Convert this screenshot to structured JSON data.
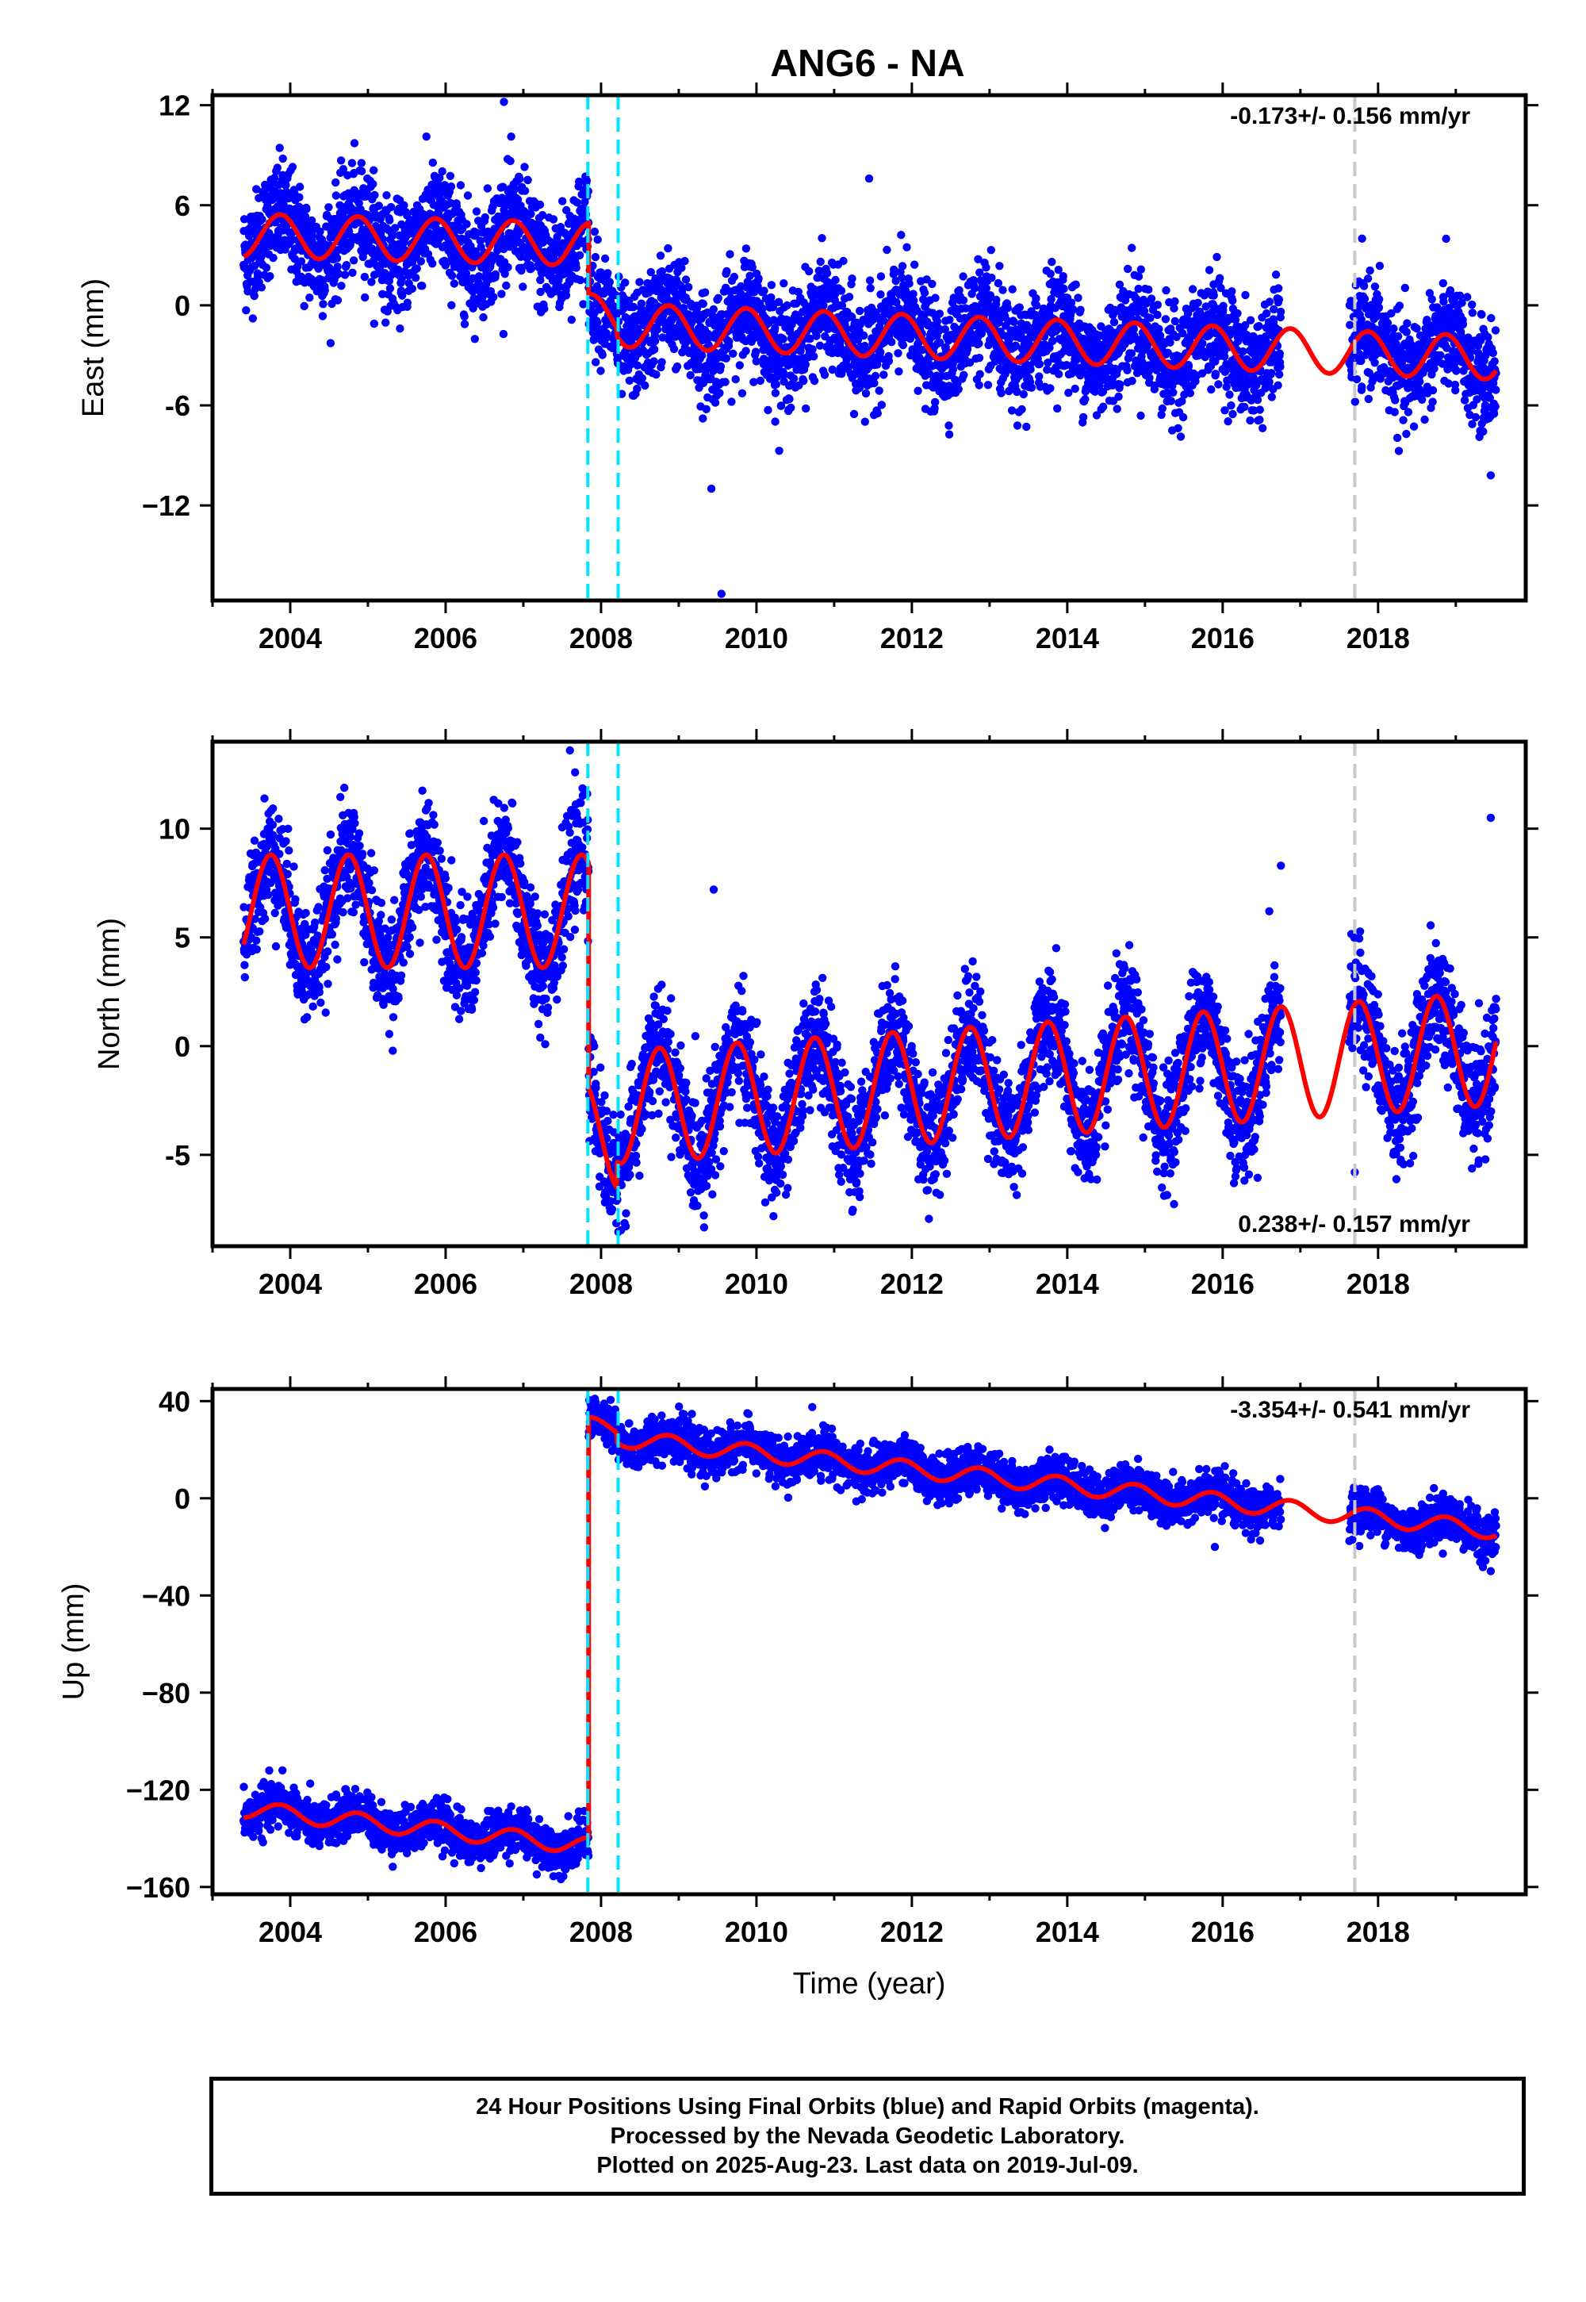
{
  "title": "ANG6 - NA",
  "footer": {
    "line1": "24 Hour Positions Using Final Orbits (blue) and Rapid Orbits (magenta).",
    "line2": "Processed by the Nevada Geodetic Laboratory.",
    "line3": "Plotted on 2025-Aug-23. Last data on 2019-Jul-09."
  },
  "colors": {
    "data_points": "#0000ff",
    "model_fit": "#ff0000",
    "equipment_change": "#00e5ff",
    "offset_marker": "#c8c8c8",
    "frame": "#000000"
  },
  "chart_data": [
    {
      "type": "scatter",
      "ylabel": "East (mm)",
      "xlabel": "",
      "xlim": [
        2003.0,
        2019.9
      ],
      "ylim": [
        -17.7,
        12.6
      ],
      "xticks": [
        2004,
        2006,
        2008,
        2010,
        2012,
        2014,
        2016,
        2018
      ],
      "yticks": [
        -12,
        -6,
        0,
        6,
        12
      ],
      "ytick_labels": [
        "−12",
        "-6",
        "0",
        "6",
        "12"
      ],
      "rate_label": "-0.173+/- 0.156 mm/yr",
      "rate_position": "top-right",
      "data_start": 2003.4,
      "data_end": 2019.52,
      "data_gap": [
        2016.75,
        2017.63
      ],
      "fit": {
        "offset": 0.0,
        "trend": -0.173,
        "amp": 1.3,
        "phase": 0.62,
        "scatter": 1.6,
        "steps": [
          {
            "t": 2007.84,
            "delta": -4.3
          },
          {
            "t": 2008.2,
            "delta": -0.5
          }
        ],
        "pre_offset_trend": -0.12,
        "level_at_start": 4.2
      },
      "vlines": [
        {
          "x": 2007.83,
          "kind": "equipment_change"
        },
        {
          "x": 2008.22,
          "kind": "equipment_change"
        },
        {
          "x": 2017.7,
          "kind": "offset_marker"
        }
      ],
      "outliers": [
        [
          2006.75,
          12.2
        ],
        [
          2009.42,
          -11.0
        ],
        [
          2009.55,
          -17.3
        ],
        [
          2019.45,
          -10.2
        ],
        [
          2015.35,
          -7.5
        ],
        [
          2011.45,
          7.6
        ]
      ]
    },
    {
      "type": "scatter",
      "ylabel": "North (mm)",
      "xlabel": "",
      "xlim": [
        2003.0,
        2019.9
      ],
      "ylim": [
        -9.2,
        14.0
      ],
      "xticks": [
        2004,
        2006,
        2008,
        2010,
        2012,
        2014,
        2016,
        2018
      ],
      "yticks": [
        -5,
        0,
        5,
        10
      ],
      "ytick_labels": [
        "-5",
        "0",
        "5",
        "10"
      ],
      "rate_label": "0.238+/- 0.157 mm/yr",
      "rate_position": "bottom-right",
      "data_start": 2003.4,
      "data_end": 2019.52,
      "data_gap": [
        2016.75,
        2017.63
      ],
      "fit": {
        "offset": 0.0,
        "trend": 0.238,
        "amp": 2.6,
        "phase": 0.5,
        "scatter": 1.3,
        "steps": [
          {
            "t": 2007.84,
            "delta": -10.3
          },
          {
            "t": 2008.2,
            "delta": 1.2
          }
        ],
        "pre_offset_trend": 0.0,
        "level_at_start": 6.2
      },
      "vlines": [
        {
          "x": 2007.83,
          "kind": "equipment_change"
        },
        {
          "x": 2008.22,
          "kind": "equipment_change"
        },
        {
          "x": 2017.7,
          "kind": "offset_marker"
        }
      ],
      "outliers": [
        [
          2007.6,
          13.6
        ],
        [
          2009.45,
          7.2
        ],
        [
          2016.75,
          8.3
        ],
        [
          2019.45,
          10.5
        ],
        [
          2017.7,
          -5.8
        ],
        [
          2016.6,
          6.2
        ]
      ]
    },
    {
      "type": "scatter",
      "ylabel": "Up (mm)",
      "xlabel": "Time (year)",
      "xlim": [
        2003.0,
        2019.9
      ],
      "ylim": [
        -163,
        45
      ],
      "xticks": [
        2004,
        2006,
        2008,
        2010,
        2012,
        2014,
        2016,
        2018
      ],
      "yticks": [
        -160,
        -120,
        -80,
        -40,
        0,
        40
      ],
      "ytick_labels": [
        "−160",
        "−120",
        "−80",
        "−40",
        "0",
        "40"
      ],
      "rate_label": "-3.354+/- 0.541 mm/yr",
      "rate_position": "top-right",
      "data_start": 2003.4,
      "data_end": 2019.52,
      "data_gap": [
        2016.75,
        2017.63
      ],
      "fit": {
        "offset": 0.0,
        "trend": -3.354,
        "amp": 3.5,
        "phase": 0.62,
        "scatter": 4.5,
        "steps": [
          {
            "t": 2007.84,
            "delta": 173.0
          },
          {
            "t": 2008.2,
            "delta": -4.0
          }
        ],
        "pre_offset_trend": -3.4,
        "level_at_start": -128.0
      },
      "vlines": [
        {
          "x": 2007.83,
          "kind": "equipment_change"
        },
        {
          "x": 2008.22,
          "kind": "equipment_change"
        },
        {
          "x": 2017.7,
          "kind": "offset_marker"
        }
      ],
      "outliers": [
        [
          2007.92,
          41.0
        ],
        [
          2019.45,
          -30.0
        ],
        [
          2015.9,
          -20.0
        ],
        [
          2003.9,
          -112.0
        ]
      ]
    }
  ]
}
